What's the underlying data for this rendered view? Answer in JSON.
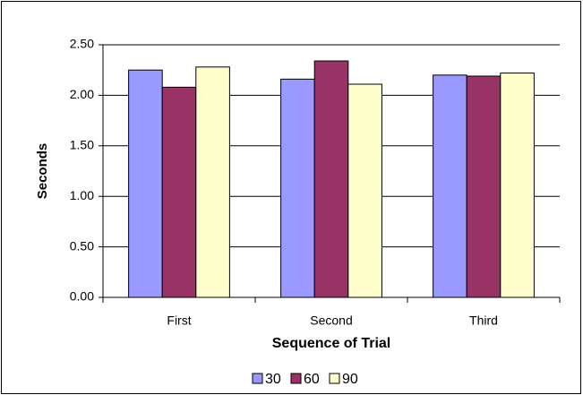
{
  "chart_data": {
    "type": "bar",
    "x_label": "Sequence of Trial",
    "y_label": "Seconds",
    "categories": [
      "First",
      "Second",
      "Third"
    ],
    "series": [
      {
        "name": "30",
        "color": "#9999ff",
        "values": [
          2.25,
          2.16,
          2.2
        ]
      },
      {
        "name": "60",
        "color": "#993366",
        "values": [
          2.08,
          2.34,
          2.19
        ]
      },
      {
        "name": "90",
        "color": "#ffffcc",
        "values": [
          2.28,
          2.11,
          2.22
        ]
      }
    ],
    "ylim": [
      0,
      2.5
    ],
    "yticks": [
      {
        "value": 0,
        "label": "0.00"
      },
      {
        "value": 0.5,
        "label": "0.50"
      },
      {
        "value": 1,
        "label": "1.00"
      },
      {
        "value": 1.5,
        "label": "1.50"
      },
      {
        "value": 2,
        "label": "2.00"
      },
      {
        "value": 2.5,
        "label": "2.50"
      }
    ],
    "grid": true,
    "legend": "bottom"
  }
}
